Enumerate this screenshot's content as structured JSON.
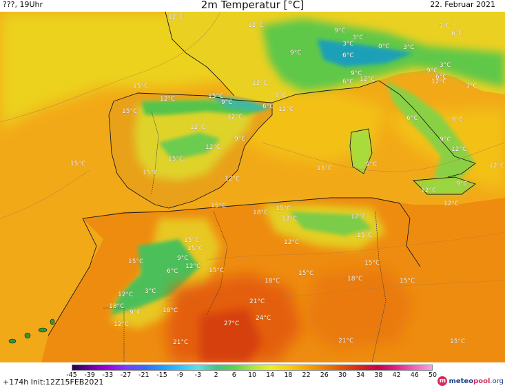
{
  "header": {
    "run_label": "???, 19Uhr",
    "title": "2m Temperatur [°C]",
    "date": "22. Februar 2021"
  },
  "footer": {
    "forecast_info": "+174h  Init:12Z15FEB2021",
    "scale_ticks": [
      "-45",
      "-39",
      "-33",
      "-27",
      "-21",
      "-15",
      "-9",
      "-3",
      "2",
      "6",
      "10",
      "14",
      "18",
      "22",
      "26",
      "30",
      "34",
      "38",
      "42",
      "46",
      "50"
    ],
    "brand": {
      "part1": "meteo",
      "part2": "pool",
      "part3": ".org"
    }
  },
  "colors": {
    "scale_gradient": [
      "#2a004a",
      "#6a00a8",
      "#a000e0",
      "#7a3cff",
      "#3a66ff",
      "#1e9bff",
      "#2ec4ff",
      "#5fe0e8",
      "#3fc48a",
      "#5bd24f",
      "#a6e83a",
      "#e8ef2a",
      "#f8d20a",
      "#f6a800",
      "#ee7e00",
      "#e45200",
      "#d8261a",
      "#c80048",
      "#e0208a",
      "#f060c0",
      "#f8a0e0"
    ],
    "sea": "#f2aa18",
    "land_warm": "#eb8a0f",
    "land_hot": "#e05a0a",
    "cool_green": "#5bc94a",
    "mild_yellow": "#e6e22a"
  },
  "map_labels": [
    {
      "text": "12°C",
      "lon_lat": "atlantic-north"
    },
    {
      "text": "12°C"
    },
    {
      "text": "9°C"
    },
    {
      "text": "3°C"
    },
    {
      "text": "6°C"
    },
    {
      "text": "3°C"
    },
    {
      "text": "0°C"
    },
    {
      "text": "3°C"
    },
    {
      "text": "3°C"
    },
    {
      "text": "6°C"
    },
    {
      "text": "9°C"
    },
    {
      "text": "3°C"
    },
    {
      "text": "9°C"
    },
    {
      "text": "6°C"
    },
    {
      "text": "9°C"
    },
    {
      "text": "12°C"
    },
    {
      "text": "3°C"
    },
    {
      "text": "6°C"
    },
    {
      "text": "12°C"
    },
    {
      "text": "12°C"
    },
    {
      "text": "9°C"
    },
    {
      "text": "15°C"
    },
    {
      "text": "12°C"
    },
    {
      "text": "15°C"
    },
    {
      "text": "9°C"
    },
    {
      "text": "6°C"
    },
    {
      "text": "12°C"
    },
    {
      "text": "15°C"
    },
    {
      "text": "12°C"
    },
    {
      "text": "12°C"
    },
    {
      "text": "9°C"
    },
    {
      "text": "6°C"
    },
    {
      "text": "9°C"
    },
    {
      "text": "15°C"
    },
    {
      "text": "12°C"
    },
    {
      "text": "9°C"
    },
    {
      "text": "12°C"
    },
    {
      "text": "15°C"
    },
    {
      "text": "9°C"
    },
    {
      "text": "12°C"
    },
    {
      "text": "15°C"
    },
    {
      "text": "15°C"
    },
    {
      "text": "9°C"
    },
    {
      "text": "12°C"
    },
    {
      "text": "12°C"
    },
    {
      "text": "15°C"
    },
    {
      "text": "12°C"
    },
    {
      "text": "18°C"
    },
    {
      "text": "15°C"
    },
    {
      "text": "12°C"
    },
    {
      "text": "12°C"
    },
    {
      "text": "12°C"
    },
    {
      "text": "15°C"
    },
    {
      "text": "15°C"
    },
    {
      "text": "15°C"
    },
    {
      "text": "9°C"
    },
    {
      "text": "15°C"
    },
    {
      "text": "15°C"
    },
    {
      "text": "12°C"
    },
    {
      "text": "6°C"
    },
    {
      "text": "15°C"
    },
    {
      "text": "15°C"
    },
    {
      "text": "18°C"
    },
    {
      "text": "18°C"
    },
    {
      "text": "15°C"
    },
    {
      "text": "12°C"
    },
    {
      "text": "3°C"
    },
    {
      "text": "18°C"
    },
    {
      "text": "9°C"
    },
    {
      "text": "21°C"
    },
    {
      "text": "24°C"
    },
    {
      "text": "12°C"
    },
    {
      "text": "18°C"
    },
    {
      "text": "27°C"
    },
    {
      "text": "21°C"
    },
    {
      "text": "21°C"
    },
    {
      "text": "15°C"
    }
  ]
}
